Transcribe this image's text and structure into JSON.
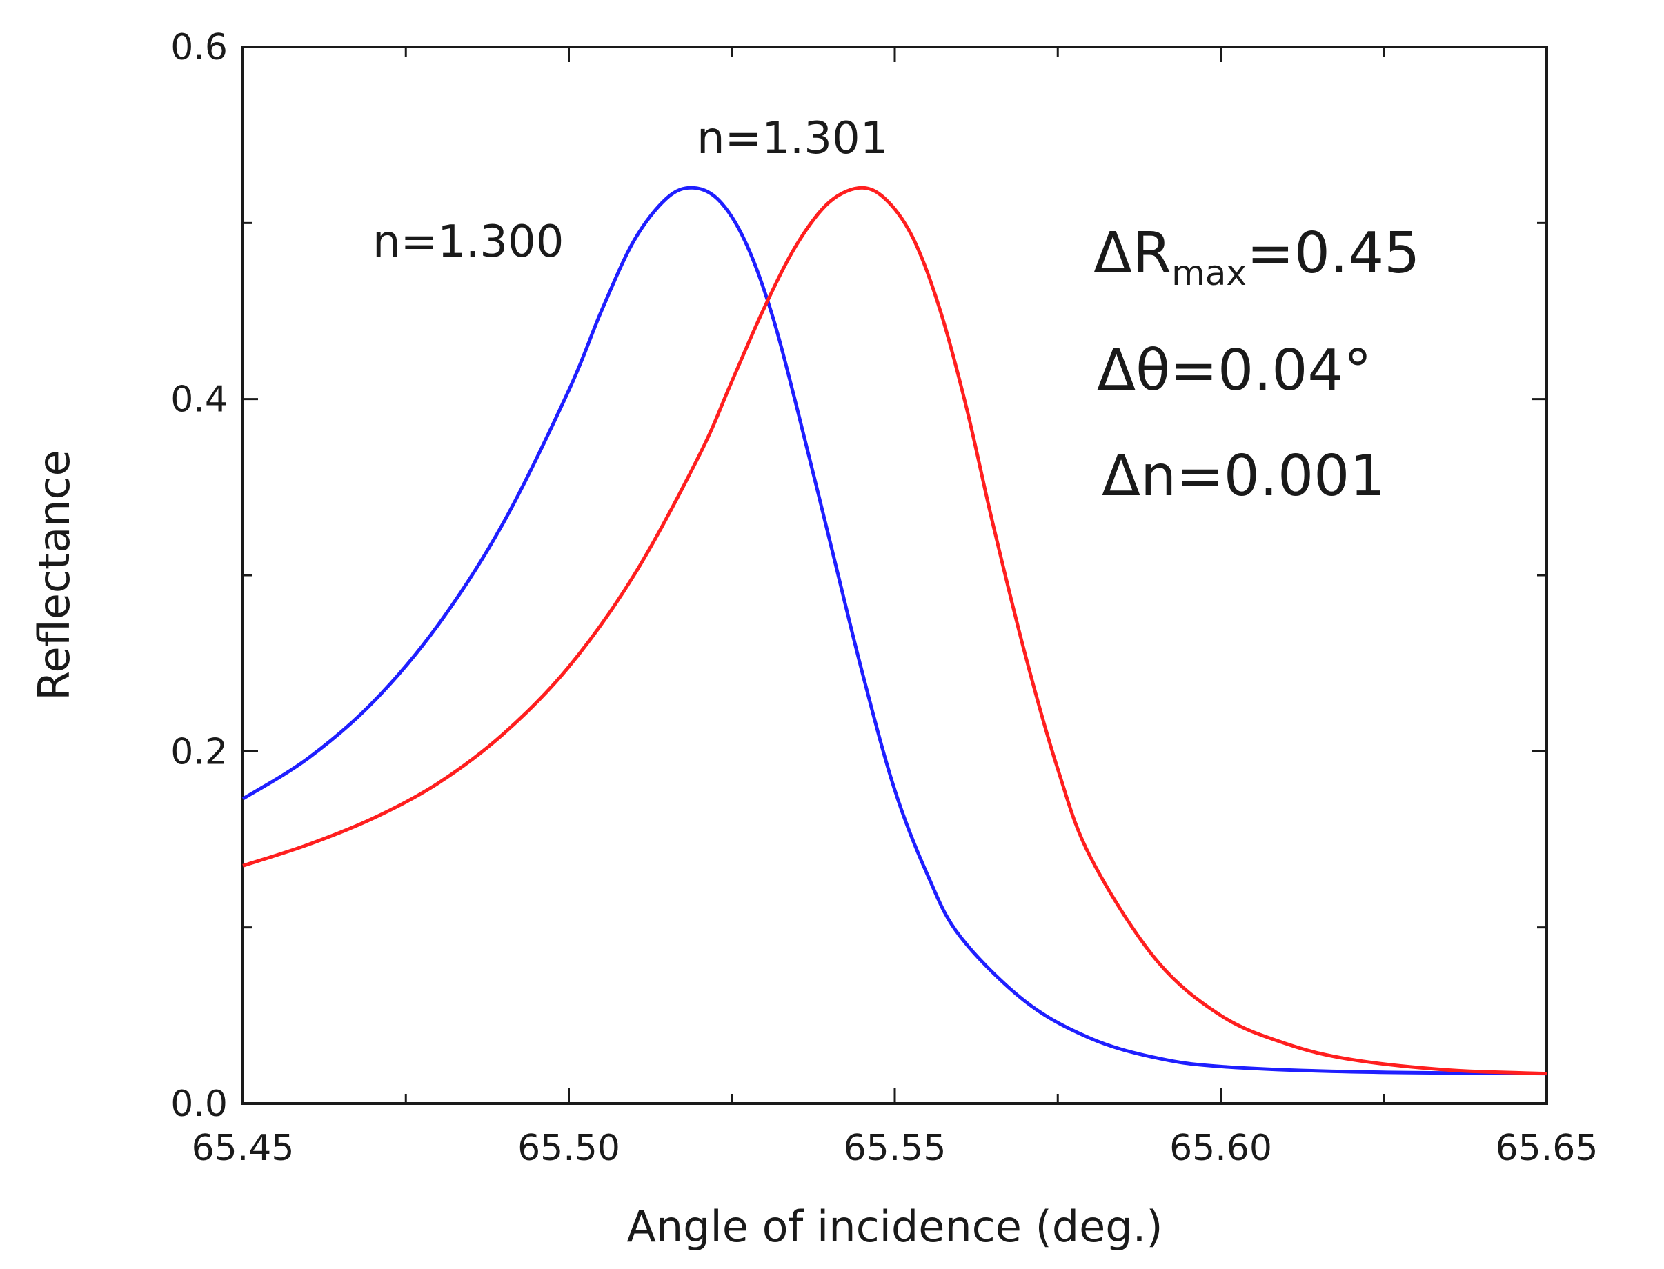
{
  "chart_data": {
    "type": "line",
    "title": "",
    "xlabel": "Angle of incidence (deg.)",
    "ylabel": "Reflectance",
    "xlim": [
      65.45,
      65.65
    ],
    "ylim": [
      0.0,
      0.6
    ],
    "grid": false,
    "x_ticks": [
      "65.45",
      "65.50",
      "65.55",
      "65.60",
      "65.65"
    ],
    "y_ticks": [
      "0.0",
      "0.2",
      "0.4",
      "0.6"
    ],
    "series": [
      {
        "name": "n=1.300",
        "color": "#1f1fff",
        "points": [
          [
            65.45,
            0.173
          ],
          [
            65.46,
            0.196
          ],
          [
            65.47,
            0.228
          ],
          [
            65.48,
            0.272
          ],
          [
            65.49,
            0.33
          ],
          [
            65.5,
            0.405
          ],
          [
            65.505,
            0.45
          ],
          [
            65.51,
            0.49
          ],
          [
            65.515,
            0.514
          ],
          [
            65.519,
            0.52
          ],
          [
            65.523,
            0.513
          ],
          [
            65.527,
            0.49
          ],
          [
            65.531,
            0.45
          ],
          [
            65.535,
            0.395
          ],
          [
            65.54,
            0.32
          ],
          [
            65.545,
            0.245
          ],
          [
            65.55,
            0.178
          ],
          [
            65.555,
            0.13
          ],
          [
            65.56,
            0.095
          ],
          [
            65.57,
            0.058
          ],
          [
            65.58,
            0.037
          ],
          [
            65.59,
            0.026
          ],
          [
            65.6,
            0.021
          ],
          [
            65.62,
            0.018
          ],
          [
            65.65,
            0.017
          ]
        ]
      },
      {
        "name": "n=1.301",
        "color": "#ff1f1f",
        "points": [
          [
            65.45,
            0.135
          ],
          [
            65.46,
            0.147
          ],
          [
            65.47,
            0.162
          ],
          [
            65.48,
            0.182
          ],
          [
            65.49,
            0.21
          ],
          [
            65.5,
            0.248
          ],
          [
            65.51,
            0.3
          ],
          [
            65.52,
            0.368
          ],
          [
            65.525,
            0.41
          ],
          [
            65.53,
            0.452
          ],
          [
            65.535,
            0.488
          ],
          [
            65.54,
            0.512
          ],
          [
            65.545,
            0.52
          ],
          [
            65.549,
            0.512
          ],
          [
            65.553,
            0.49
          ],
          [
            65.557,
            0.45
          ],
          [
            65.561,
            0.395
          ],
          [
            65.565,
            0.33
          ],
          [
            65.57,
            0.255
          ],
          [
            65.575,
            0.19
          ],
          [
            65.58,
            0.14
          ],
          [
            65.59,
            0.082
          ],
          [
            65.6,
            0.05
          ],
          [
            65.61,
            0.034
          ],
          [
            65.62,
            0.025
          ],
          [
            65.635,
            0.019
          ],
          [
            65.65,
            0.017
          ]
        ]
      }
    ],
    "annotations": [
      {
        "text": "n=1.301"
      },
      {
        "text": "n=1.300"
      }
    ]
  },
  "stats": {
    "delta_r_prefix": "ΔR",
    "delta_r_sub": "max",
    "delta_r_value": "=0.45",
    "delta_theta": "Δθ=0.04°",
    "delta_n": "Δn=0.001"
  }
}
